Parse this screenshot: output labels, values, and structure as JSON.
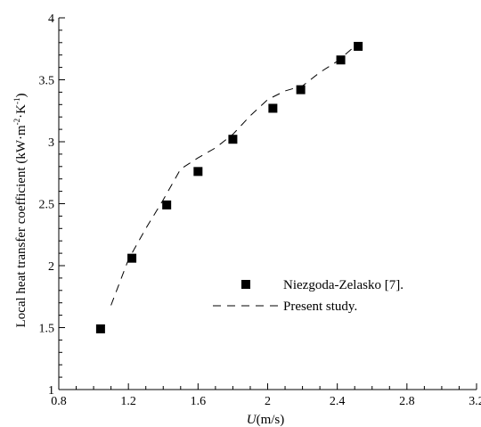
{
  "chart_data": {
    "type": "scatter",
    "title": "",
    "xlabel": "U (m/s)",
    "xlabel_var": "U",
    "xlabel_unit": "(m/s)",
    "ylabel": "Local heat transfer coefficient (kW·m⁻²·K⁻¹)",
    "ylabel_main": "Local heat transfer coefficient (kW·m",
    "ylabel_exp1": "-2",
    "ylabel_mid": "·K",
    "ylabel_exp2": "-1",
    "ylabel_end": ")",
    "xlim": [
      0.8,
      3.2
    ],
    "ylim": [
      1,
      4
    ],
    "xticks": [
      0.8,
      1.2,
      1.6,
      2.0,
      2.4,
      2.8,
      3.2
    ],
    "xtick_labels": [
      "0.8",
      "1.2",
      "1.6",
      "2",
      "2.4",
      "2.8",
      "3.2"
    ],
    "yticks": [
      1,
      1.5,
      2,
      2.5,
      3,
      3.5,
      4
    ],
    "ytick_labels": [
      "1",
      "1.5",
      "2",
      "2.5",
      "3",
      "3.5",
      "4"
    ],
    "grid": false,
    "legend_position": "center-right",
    "series": [
      {
        "name": "Niezgoda-Zelasko [7].",
        "style": "square-marker",
        "color": "#000000",
        "x": [
          1.04,
          1.22,
          1.42,
          1.6,
          1.8,
          2.03,
          2.19,
          2.42,
          2.52
        ],
        "y": [
          1.49,
          2.06,
          2.49,
          2.76,
          3.02,
          3.27,
          3.42,
          3.66,
          3.77
        ]
      },
      {
        "name": "Present study.",
        "style": "dashed-line",
        "color": "#000000",
        "x": [
          1.1,
          1.2,
          1.3,
          1.4,
          1.5,
          1.6,
          1.7,
          1.8,
          1.9,
          2.0,
          2.1,
          2.2,
          2.3,
          2.4,
          2.5
        ],
        "y": [
          1.68,
          2.05,
          2.3,
          2.53,
          2.78,
          2.87,
          2.95,
          3.06,
          3.21,
          3.34,
          3.41,
          3.45,
          3.56,
          3.65,
          3.77
        ]
      }
    ]
  }
}
